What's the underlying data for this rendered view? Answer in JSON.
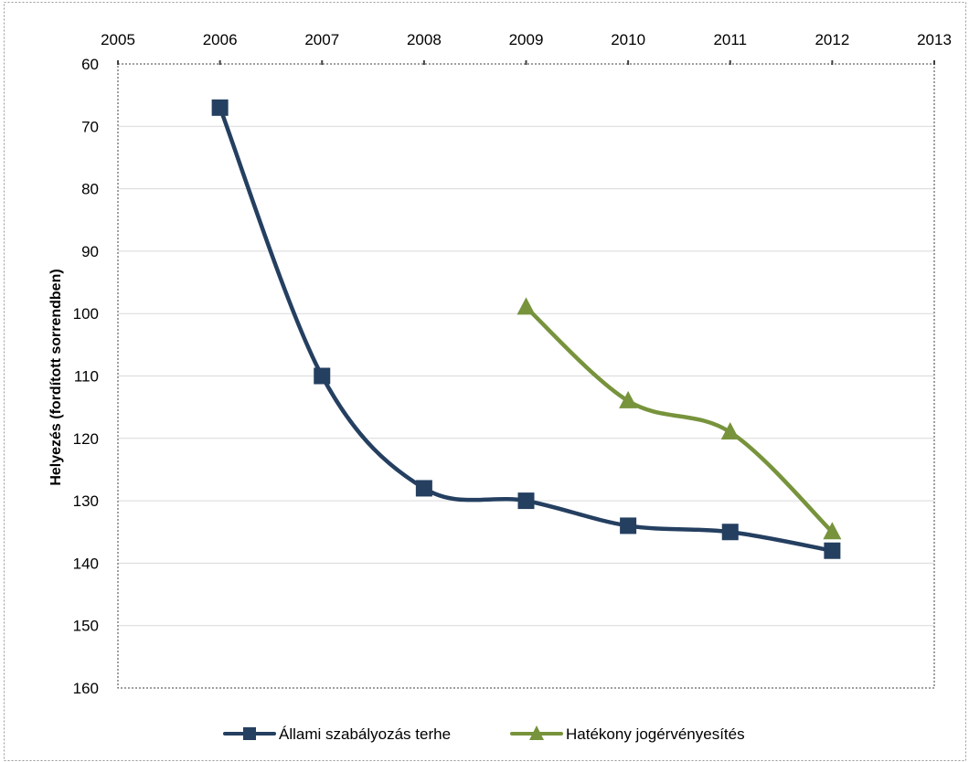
{
  "chart_data": {
    "type": "line",
    "title": "",
    "xlabel": "",
    "ylabel": "Helyezés (fordított sorrendben)",
    "x_ticks": [
      "2005",
      "2006",
      "2007",
      "2008",
      "2009",
      "2010",
      "2011",
      "2012",
      "2013"
    ],
    "xlim": [
      2005,
      2013
    ],
    "x_axis_position": "top",
    "y_ticks": [
      60,
      70,
      80,
      90,
      100,
      110,
      120,
      130,
      140,
      150,
      160
    ],
    "ylim": [
      60,
      160
    ],
    "y_inverted": true,
    "grid": "horizontal",
    "legend_position": "bottom",
    "series": [
      {
        "name": "Állami szabályozás terhe",
        "color": "#243F60",
        "marker": "square",
        "x": [
          2006,
          2007,
          2008,
          2009,
          2010,
          2011,
          2012
        ],
        "y": [
          67,
          110,
          128,
          130,
          134,
          135,
          138
        ]
      },
      {
        "name": "Hatékony jogérvényesítés",
        "color": "#77933C",
        "marker": "triangle",
        "x": [
          2009,
          2010,
          2011,
          2012
        ],
        "y": [
          99,
          114,
          119,
          135
        ]
      }
    ]
  }
}
